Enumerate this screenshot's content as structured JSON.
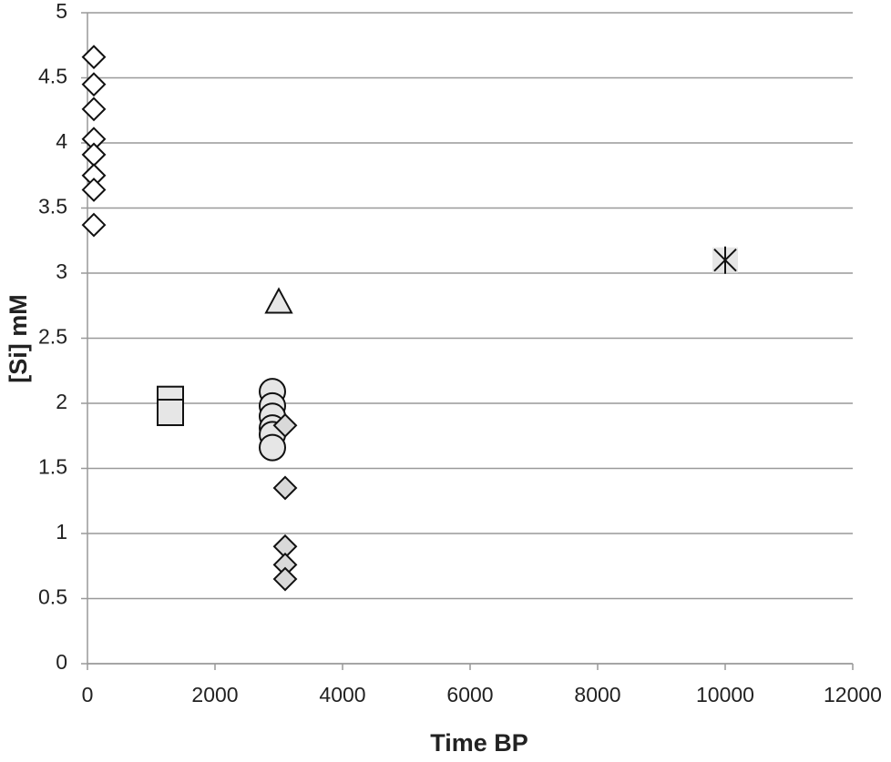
{
  "chart_data": {
    "type": "scatter",
    "x_label": "Time BP",
    "y_label": "[Si] mM",
    "xlim": [
      0,
      12000
    ],
    "xticks": [
      0,
      2000,
      4000,
      6000,
      8000,
      10000,
      12000
    ],
    "ylim": [
      0,
      5
    ],
    "yticks": [
      0,
      0.5,
      1,
      1.5,
      2,
      2.5,
      3,
      3.5,
      4,
      4.5,
      5
    ],
    "grid": true,
    "series": [
      {
        "marker": "diamond",
        "color": "#ffffff",
        "x": [
          100,
          100,
          100,
          100,
          100,
          100,
          100,
          100
        ],
        "values": [
          4.66,
          4.45,
          4.26,
          4.03,
          3.91,
          3.75,
          3.64,
          3.37
        ]
      },
      {
        "marker": "square",
        "color": "#e6e6e6",
        "x": [
          1300,
          1300
        ],
        "values": [
          2.03,
          1.93
        ]
      },
      {
        "marker": "triangle",
        "color": "#e6e6e6",
        "x": [
          3000
        ],
        "values": [
          2.78
        ]
      },
      {
        "marker": "circle",
        "color": "#e6e6e6",
        "x": [
          2900,
          2900,
          2900,
          2900,
          2900,
          2900
        ],
        "values": [
          2.09,
          1.98,
          1.9,
          1.81,
          1.76,
          1.66
        ]
      },
      {
        "marker": "diamond",
        "color": "#d9d9d9",
        "x": [
          3100,
          3100,
          3100,
          3100,
          3100
        ],
        "values": [
          1.83,
          1.35,
          0.9,
          0.76,
          0.65
        ]
      },
      {
        "marker": "star",
        "color": "#e6e6e6",
        "x": [
          10000
        ],
        "values": [
          3.1
        ]
      }
    ]
  }
}
